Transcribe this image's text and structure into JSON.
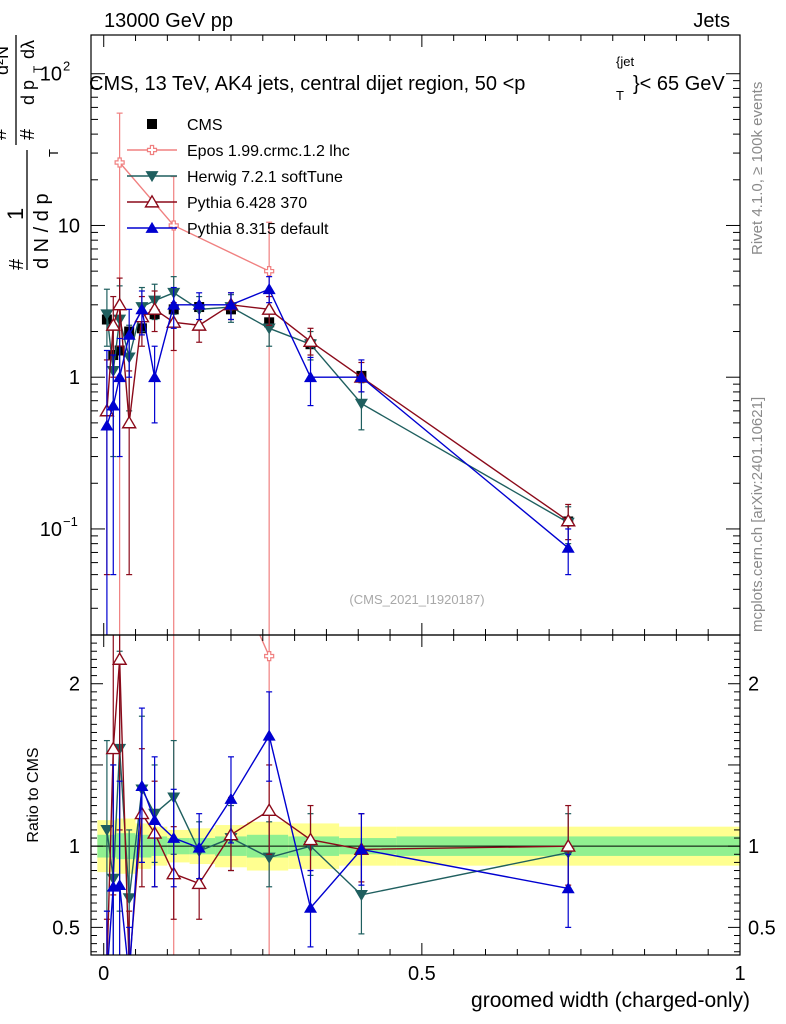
{
  "header": {
    "left": "13000 GeV pp",
    "right": "Jets",
    "title": "CMS, 13 TeV, AK4 jets, central dijet region, 50 <p_T^{jet}< 65 GeV",
    "title_part1": "CMS, 13 TeV, AK4 jets, central dijet region, 50 <p",
    "title_sub": "T",
    "title_sup": "{jet",
    "title_part2": "}< 65 GeV",
    "side_top": "Rivet 4.1.0, ≥ 100k events",
    "side_bottom": "mcplots.cern.ch [arXiv:2401.10621]",
    "watermark": "(CMS_2021_I1920187)"
  },
  "ylabel_parts": {
    "num_hash": "#",
    "num_one": "1",
    "den_dN": "d N / d p",
    "den_sub": "T",
    "top_hash": "#",
    "top_d2N": "d²N",
    "top_dpT": "d p",
    "top_sub": "T",
    "top_dl": "dλ"
  },
  "colors": {
    "cms": "#000000",
    "epos": "#f08080",
    "herwig": "#1f5f5f",
    "pythia6": "#8b0a1a",
    "pythia8": "#0000d0",
    "band_inner": "#90f090",
    "band_outer": "#ffff90"
  },
  "chart_data": {
    "type": "scatter",
    "xlabel": "groomed width (charged-only)",
    "xlim": [
      -0.02,
      1.0
    ],
    "xticks": [
      {
        "v": 0,
        "label": "0"
      },
      {
        "v": 0.5,
        "label": "0.5"
      },
      {
        "v": 1,
        "label": "1"
      }
    ],
    "main": {
      "ylabel": "1/(dN/dpT) d²N/(dpT dλ)",
      "yscale": "log",
      "ylim": [
        0.02,
        180
      ],
      "yticks": [
        {
          "v": 0.1,
          "base": "10",
          "exp": "−1"
        },
        {
          "v": 1,
          "label": "1"
        },
        {
          "v": 10,
          "label": "10"
        },
        {
          "v": 100,
          "base": "10",
          "exp": "2"
        }
      ]
    },
    "ratio": {
      "ylabel": "Ratio to CMS",
      "ylim": [
        0.33,
        2.3
      ],
      "yticks": [
        {
          "v": 0.5,
          "label": "0.5"
        },
        {
          "v": 1,
          "label": "1"
        },
        {
          "v": 2,
          "label": "2"
        }
      ]
    },
    "bands": [
      {
        "x0": -0.01,
        "x1": 0.02,
        "inner": 0.07,
        "outer": 0.16
      },
      {
        "x0": 0.02,
        "x1": 0.05,
        "inner": 0.08,
        "outer": 0.17
      },
      {
        "x0": 0.05,
        "x1": 0.075,
        "inner": 0.07,
        "outer": 0.14
      },
      {
        "x0": 0.075,
        "x1": 0.1,
        "inner": 0.06,
        "outer": 0.12
      },
      {
        "x0": 0.1,
        "x1": 0.135,
        "inner": 0.05,
        "outer": 0.1
      },
      {
        "x0": 0.135,
        "x1": 0.175,
        "inner": 0.05,
        "outer": 0.11
      },
      {
        "x0": 0.175,
        "x1": 0.225,
        "inner": 0.06,
        "outer": 0.13
      },
      {
        "x0": 0.225,
        "x1": 0.29,
        "inner": 0.07,
        "outer": 0.15
      },
      {
        "x0": 0.29,
        "x1": 0.37,
        "inner": 0.06,
        "outer": 0.14
      },
      {
        "x0": 0.37,
        "x1": 0.46,
        "inner": 0.05,
        "outer": 0.12
      },
      {
        "x0": 0.46,
        "x1": 1.0,
        "inner": 0.06,
        "outer": 0.12
      }
    ],
    "series": [
      {
        "name": "CMS",
        "key": "cms",
        "marker": "square",
        "points": [
          {
            "x": 0.005,
            "y": 2.4
          },
          {
            "x": 0.015,
            "y": 1.4
          },
          {
            "x": 0.025,
            "y": 1.5
          },
          {
            "x": 0.04,
            "y": 2.0
          },
          {
            "x": 0.06,
            "y": 2.1
          },
          {
            "x": 0.08,
            "y": 2.6
          },
          {
            "x": 0.11,
            "y": 2.8
          },
          {
            "x": 0.15,
            "y": 2.9
          },
          {
            "x": 0.2,
            "y": 2.8
          },
          {
            "x": 0.26,
            "y": 2.3
          },
          {
            "x": 0.325,
            "y": 1.65
          },
          {
            "x": 0.405,
            "y": 1.02
          },
          {
            "x": 0.73,
            "y": 0.112
          }
        ]
      },
      {
        "name": "Epos 1.99.crmc.1.2 lhc",
        "key": "epos",
        "marker": "cross-open",
        "points": [
          {
            "x": 0.025,
            "y": 26,
            "lo": 0.01,
            "hi": 55,
            "r": 16,
            "rlo": 0.0,
            "rhi": 40
          },
          {
            "x": 0.11,
            "y": 10,
            "lo": 0.01,
            "hi": 21,
            "r": 3.5,
            "rlo": 0.0,
            "rhi": 7.5
          },
          {
            "x": 0.26,
            "y": 5.0,
            "lo": 0.01,
            "hi": 10.5,
            "r": 2.17,
            "rlo": 0.0,
            "rhi": 4.5
          }
        ]
      },
      {
        "name": "Herwig 7.2.1 softTune",
        "key": "herwig",
        "marker": "tri-down",
        "points": [
          {
            "x": 0.005,
            "y": 2.6,
            "lo": 1.6,
            "hi": 3.8,
            "r": 1.1,
            "rlo": 0.6,
            "rhi": 1.65
          },
          {
            "x": 0.015,
            "y": 1.1,
            "lo": 0.3,
            "hi": 2.2,
            "r": 0.8,
            "rlo": 0.2,
            "rhi": 1.5
          },
          {
            "x": 0.025,
            "y": 2.4,
            "lo": 1.0,
            "hi": 4.0,
            "r": 1.6,
            "rlo": 0.6,
            "rhi": 2.2
          },
          {
            "x": 0.04,
            "y": 1.35,
            "lo": 0.6,
            "hi": 2.2,
            "r": 0.68,
            "rlo": 0.3,
            "rhi": 1.1
          },
          {
            "x": 0.06,
            "y": 2.9,
            "lo": 2.0,
            "hi": 3.9,
            "r": 1.35,
            "rlo": 0.9,
            "rhi": 1.8
          },
          {
            "x": 0.08,
            "y": 3.2,
            "lo": 2.4,
            "hi": 4.1,
            "r": 1.2,
            "rlo": 0.9,
            "rhi": 1.5
          },
          {
            "x": 0.11,
            "y": 3.6,
            "lo": 2.6,
            "hi": 4.6,
            "r": 1.3,
            "rlo": 0.95,
            "rhi": 1.65
          },
          {
            "x": 0.15,
            "y": 2.8,
            "lo": 2.2,
            "hi": 3.4,
            "r": 0.97,
            "rlo": 0.8,
            "rhi": 1.15
          },
          {
            "x": 0.2,
            "y": 2.9,
            "lo": 2.3,
            "hi": 3.5,
            "r": 1.05,
            "rlo": 0.85,
            "rhi": 1.25
          },
          {
            "x": 0.26,
            "y": 2.1,
            "lo": 1.6,
            "hi": 2.7,
            "r": 0.93,
            "rlo": 0.75,
            "rhi": 1.15
          },
          {
            "x": 0.325,
            "y": 1.65,
            "lo": 1.3,
            "hi": 2.0,
            "r": 1.0,
            "rlo": 0.82,
            "rhi": 1.2
          },
          {
            "x": 0.405,
            "y": 0.67,
            "lo": 0.45,
            "hi": 0.92,
            "r": 0.7,
            "rlo": 0.46,
            "rhi": 0.95
          },
          {
            "x": 0.73,
            "y": 0.11,
            "lo": 0.08,
            "hi": 0.14,
            "r": 0.96,
            "rlo": 0.72,
            "rhi": 1.2
          }
        ]
      },
      {
        "name": "Pythia 6.428 370",
        "key": "pythia6",
        "marker": "tri-up-open",
        "points": [
          {
            "x": 0.005,
            "y": 0.6,
            "lo": 0.05,
            "hi": 1.3,
            "r": 0.25,
            "rlo": 0.0,
            "rhi": 0.55
          },
          {
            "x": 0.015,
            "y": 2.2,
            "lo": 1.0,
            "hi": 3.4,
            "r": 1.6,
            "rlo": 0.7,
            "rhi": 2.4
          },
          {
            "x": 0.025,
            "y": 3.0,
            "lo": 1.6,
            "hi": 4.5,
            "r": 2.15,
            "rlo": 1.1,
            "rhi": 3.2
          },
          {
            "x": 0.04,
            "y": 0.5,
            "lo": 0.05,
            "hi": 1.1,
            "r": 0.25,
            "rlo": 0.0,
            "rhi": 0.6
          },
          {
            "x": 0.06,
            "y": 2.5,
            "lo": 1.6,
            "hi": 3.4,
            "r": 1.2,
            "rlo": 0.75,
            "rhi": 1.6
          },
          {
            "x": 0.08,
            "y": 2.8,
            "lo": 2.0,
            "hi": 3.7,
            "r": 1.08,
            "rlo": 0.75,
            "rhi": 1.4
          },
          {
            "x": 0.11,
            "y": 2.3,
            "lo": 1.5,
            "hi": 3.1,
            "r": 0.83,
            "rlo": 0.55,
            "rhi": 1.12
          },
          {
            "x": 0.15,
            "y": 2.2,
            "lo": 1.7,
            "hi": 2.8,
            "r": 0.77,
            "rlo": 0.55,
            "rhi": 1.0
          },
          {
            "x": 0.2,
            "y": 3.0,
            "lo": 2.4,
            "hi": 3.6,
            "r": 1.07,
            "rlo": 0.85,
            "rhi": 1.3
          },
          {
            "x": 0.26,
            "y": 2.8,
            "lo": 2.2,
            "hi": 3.4,
            "r": 1.22,
            "rlo": 0.95,
            "rhi": 1.5
          },
          {
            "x": 0.325,
            "y": 1.72,
            "lo": 1.4,
            "hi": 2.1,
            "r": 1.04,
            "rlo": 0.85,
            "rhi": 1.25
          },
          {
            "x": 0.405,
            "y": 1.0,
            "lo": 0.8,
            "hi": 1.25,
            "r": 0.98,
            "rlo": 0.78,
            "rhi": 1.2
          },
          {
            "x": 0.73,
            "y": 0.113,
            "lo": 0.085,
            "hi": 0.145,
            "r": 1.0,
            "rlo": 0.76,
            "rhi": 1.25
          }
        ]
      },
      {
        "name": "Pythia 8.315 default",
        "key": "pythia8",
        "marker": "tri-up",
        "points": [
          {
            "x": 0.005,
            "y": 0.48,
            "lo": 0.02,
            "hi": 1.5,
            "r": 0.2,
            "rlo": 0.0,
            "rhi": 0.6
          },
          {
            "x": 0.015,
            "y": 0.65,
            "lo": 0.05,
            "hi": 1.4,
            "r": 0.75,
            "rlo": 0.05,
            "rhi": 1.5
          },
          {
            "x": 0.025,
            "y": 1.0,
            "lo": 0.3,
            "hi": 1.8,
            "r": 0.76,
            "rlo": 0.2,
            "rhi": 1.4
          },
          {
            "x": 0.04,
            "y": 1.9,
            "lo": 1.0,
            "hi": 2.8,
            "r": 0.2,
            "rlo": 0.0,
            "rhi": 0.5
          },
          {
            "x": 0.06,
            "y": 2.8,
            "lo": 1.9,
            "hi": 3.7,
            "r": 1.37,
            "rlo": 0.9,
            "rhi": 1.85
          },
          {
            "x": 0.08,
            "y": 1.0,
            "lo": 0.5,
            "hi": 1.6,
            "r": 1.16,
            "rlo": 0.75,
            "rhi": 1.55
          },
          {
            "x": 0.11,
            "y": 3.0,
            "lo": 2.1,
            "hi": 3.9,
            "r": 1.05,
            "rlo": 0.75,
            "rhi": 1.35
          },
          {
            "x": 0.15,
            "y": 3.0,
            "lo": 2.4,
            "hi": 3.6,
            "r": 0.99,
            "rlo": 0.8,
            "rhi": 1.2
          },
          {
            "x": 0.2,
            "y": 3.0,
            "lo": 2.4,
            "hi": 3.6,
            "r": 1.29,
            "rlo": 1.02,
            "rhi": 1.55
          },
          {
            "x": 0.26,
            "y": 3.8,
            "lo": 3.1,
            "hi": 4.6,
            "r": 1.68,
            "rlo": 1.4,
            "rhi": 1.95
          },
          {
            "x": 0.325,
            "y": 1.0,
            "lo": 0.65,
            "hi": 1.35,
            "r": 0.62,
            "rlo": 0.38,
            "rhi": 0.85
          },
          {
            "x": 0.405,
            "y": 1.0,
            "lo": 0.8,
            "hi": 1.3,
            "r": 0.98,
            "rlo": 0.76,
            "rhi": 1.2
          },
          {
            "x": 0.73,
            "y": 0.075,
            "lo": 0.05,
            "hi": 0.1,
            "r": 0.74,
            "rlo": 0.5,
            "rhi": 0.95
          }
        ]
      }
    ]
  }
}
